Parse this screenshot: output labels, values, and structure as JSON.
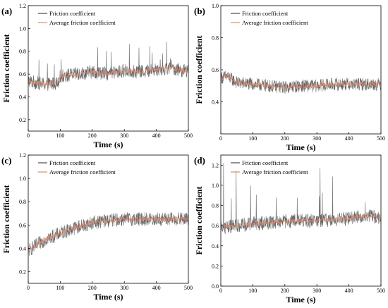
{
  "chart_data": [
    {
      "type": "line",
      "panel_label": "(a)",
      "xlabel": "Time (s)",
      "ylabel": "Friction coefficient",
      "xlim": [
        0,
        500
      ],
      "ylim": [
        0.1,
        1.2
      ],
      "xticks": [
        0,
        100,
        200,
        300,
        400,
        500
      ],
      "yticks": [
        0.2,
        0.4,
        0.6,
        0.8,
        1.0,
        1.2
      ],
      "ytick_labels": [
        "0.2",
        "0.4",
        "0.6",
        "0.8",
        "1.0",
        "1.2"
      ],
      "legend_position": "top-left",
      "series": [
        {
          "name": "Friction coefficient",
          "color": "#4a4a4a",
          "x": [
            0,
            50,
            90,
            100,
            150,
            200,
            250,
            300,
            350,
            400,
            450,
            500
          ],
          "y": [
            0.54,
            0.51,
            0.52,
            0.58,
            0.6,
            0.62,
            0.6,
            0.63,
            0.62,
            0.64,
            0.65,
            0.62
          ],
          "noise": 0.06,
          "max": 0.9
        },
        {
          "name": "Average friction coefficient",
          "color": "#e08a6a",
          "x": [
            0,
            50,
            90,
            100,
            150,
            200,
            250,
            300,
            350,
            400,
            450,
            500
          ],
          "y": [
            0.54,
            0.51,
            0.52,
            0.58,
            0.6,
            0.62,
            0.6,
            0.63,
            0.62,
            0.64,
            0.65,
            0.62
          ],
          "noise": 0.02
        }
      ]
    },
    {
      "type": "line",
      "panel_label": "(b)",
      "xlabel": "Time (s)",
      "ylabel": "Friction coefficient",
      "xlim": [
        0,
        500
      ],
      "ylim": [
        0.2,
        1.0
      ],
      "xticks": [
        0,
        100,
        200,
        300,
        400,
        500
      ],
      "yticks": [
        0.4,
        0.6,
        0.8,
        1.0
      ],
      "ytick_labels": [
        "0.4",
        "0.6",
        "0.8",
        "1.0"
      ],
      "legend_position": "top-left",
      "series": [
        {
          "name": "Friction coefficient",
          "color": "#4a4a4a",
          "x": [
            0,
            20,
            50,
            100,
            150,
            200,
            250,
            300,
            350,
            400,
            450,
            500
          ],
          "y": [
            0.55,
            0.56,
            0.52,
            0.51,
            0.5,
            0.49,
            0.5,
            0.5,
            0.51,
            0.51,
            0.51,
            0.51
          ],
          "noise": 0.04
        },
        {
          "name": "Average friction coefficient",
          "color": "#e08a6a",
          "x": [
            0,
            20,
            50,
            100,
            150,
            200,
            250,
            300,
            350,
            400,
            450,
            500
          ],
          "y": [
            0.55,
            0.56,
            0.52,
            0.51,
            0.5,
            0.49,
            0.5,
            0.5,
            0.51,
            0.51,
            0.51,
            0.51
          ],
          "noise": 0.015
        }
      ]
    },
    {
      "type": "line",
      "panel_label": "(c)",
      "xlabel": "Time (s)",
      "ylabel": "Friction coefficient",
      "xlim": [
        0,
        500
      ],
      "ylim": [
        0.1,
        1.2
      ],
      "xticks": [
        0,
        100,
        200,
        300,
        400,
        500
      ],
      "yticks": [
        0.2,
        0.4,
        0.6,
        0.8,
        1.0,
        1.2
      ],
      "ytick_labels": [
        "0.2",
        "0.4",
        "0.6",
        "0.8",
        "1.0",
        "1.2"
      ],
      "legend_position": "top-left",
      "series": [
        {
          "name": "Friction coefficient",
          "color": "#4a4a4a",
          "x": [
            0,
            50,
            100,
            150,
            200,
            250,
            300,
            350,
            400,
            450,
            500
          ],
          "y": [
            0.38,
            0.47,
            0.53,
            0.58,
            0.62,
            0.64,
            0.65,
            0.65,
            0.65,
            0.65,
            0.65
          ],
          "noise": 0.06
        },
        {
          "name": "Average friction coefficient",
          "color": "#e08a6a",
          "x": [
            0,
            50,
            100,
            150,
            200,
            250,
            300,
            350,
            400,
            450,
            500
          ],
          "y": [
            0.38,
            0.47,
            0.53,
            0.58,
            0.62,
            0.64,
            0.65,
            0.65,
            0.65,
            0.65,
            0.65
          ],
          "noise": 0.02
        }
      ]
    },
    {
      "type": "line",
      "panel_label": "(d)",
      "xlabel": "Time (s)",
      "ylabel": "Friction coefficient",
      "xlim": [
        0,
        500
      ],
      "ylim": [
        0.0,
        1.3
      ],
      "xticks": [
        0,
        100,
        200,
        300,
        400,
        500
      ],
      "yticks": [
        0.0,
        0.2,
        0.4,
        0.6,
        0.8,
        1.0,
        1.2
      ],
      "ytick_labels": [
        "0.0",
        "0.2",
        "0.4",
        "0.6",
        "0.8",
        "1.0",
        "1.2"
      ],
      "legend_position": "top-left",
      "series": [
        {
          "name": "Friction coefficient",
          "color": "#4a4a4a",
          "x": [
            0,
            50,
            100,
            150,
            200,
            250,
            300,
            350,
            400,
            450,
            500
          ],
          "y": [
            0.58,
            0.6,
            0.62,
            0.63,
            0.64,
            0.65,
            0.65,
            0.66,
            0.67,
            0.7,
            0.68
          ],
          "noise": 0.07,
          "max": 1.25
        },
        {
          "name": "Average friction coefficient",
          "color": "#e08a6a",
          "x": [
            0,
            50,
            100,
            150,
            200,
            250,
            300,
            350,
            400,
            450,
            500
          ],
          "y": [
            0.58,
            0.6,
            0.62,
            0.63,
            0.64,
            0.65,
            0.65,
            0.66,
            0.67,
            0.7,
            0.68
          ],
          "noise": 0.02
        }
      ]
    }
  ]
}
